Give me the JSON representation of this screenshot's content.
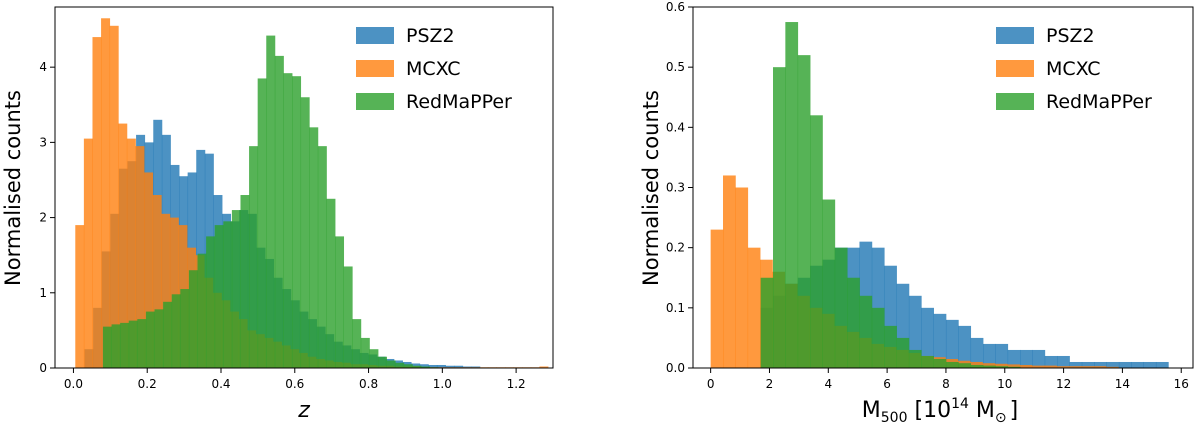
{
  "chart_data": [
    {
      "type": "histogram",
      "panel": "left",
      "xlabel": "z",
      "ylabel": "Normalised counts",
      "xlim": [
        -0.05,
        1.3
      ],
      "ylim": [
        0,
        4.8
      ],
      "xticks": [
        0.0,
        0.2,
        0.4,
        0.6,
        0.8,
        1.0,
        1.2
      ],
      "xtick_labels": [
        "0.0",
        "0.2",
        "0.4",
        "0.6",
        "0.8",
        "1.0",
        "1.2"
      ],
      "yticks": [
        0,
        1,
        2,
        3,
        4
      ],
      "ytick_labels": [
        "0",
        "1",
        "2",
        "3",
        "4"
      ],
      "legend_position": "top-right",
      "series": [
        {
          "name": "PSZ2",
          "color": "#1f77b4",
          "bin_start": 0.03,
          "bin_width": 0.0233,
          "values": [
            0.25,
            0.8,
            1.55,
            2.05,
            2.65,
            2.75,
            3.1,
            3.0,
            3.3,
            3.1,
            2.7,
            2.55,
            2.6,
            2.9,
            2.85,
            2.3,
            2.05,
            1.95,
            2.1,
            2.05,
            1.6,
            1.45,
            1.2,
            1.05,
            0.9,
            0.75,
            0.65,
            0.55,
            0.45,
            0.35,
            0.3,
            0.25,
            0.2,
            0.18,
            0.15,
            0.12,
            0.1,
            0.08,
            0.06,
            0.05,
            0.04,
            0.04,
            0.03,
            0.03,
            0.02,
            0.02
          ]
        },
        {
          "name": "MCXC",
          "color": "#ff7f0e",
          "bin_start": 0.005,
          "bin_width": 0.0233,
          "values": [
            1.9,
            3.05,
            4.4,
            4.65,
            4.55,
            3.25,
            3.05,
            2.95,
            2.6,
            2.3,
            2.05,
            2.0,
            1.9,
            1.6,
            1.5,
            1.2,
            1.0,
            0.9,
            0.75,
            0.65,
            0.5,
            0.45,
            0.4,
            0.35,
            0.3,
            0.25,
            0.2,
            0.15,
            0.12,
            0.1,
            0.08,
            0.07,
            0.05,
            0.05,
            0.04,
            0.03,
            0.03,
            0.02,
            0.02,
            0.02,
            0.01,
            0.01,
            0.01,
            0.01,
            0.01,
            0.01,
            0.01,
            0.01,
            0.01,
            0.01,
            0.01,
            0.01,
            0.01,
            0.01,
            0.02
          ]
        },
        {
          "name": "RedMaPPer",
          "color": "#2ca02c",
          "bin_start": 0.08,
          "bin_width": 0.0233,
          "values": [
            0.55,
            0.58,
            0.6,
            0.63,
            0.65,
            0.75,
            0.78,
            0.88,
            0.98,
            1.05,
            1.3,
            1.52,
            1.75,
            1.9,
            1.95,
            2.1,
            2.3,
            2.95,
            3.85,
            4.42,
            4.15,
            3.92,
            3.88,
            3.6,
            3.2,
            2.95,
            2.25,
            1.75,
            1.35,
            0.65,
            0.4,
            0.25,
            0.15,
            0.1,
            0.07,
            0.05,
            0.03,
            0.02,
            0.01
          ]
        }
      ]
    },
    {
      "type": "histogram",
      "panel": "right",
      "xlabel": "M500 [10^14 M⊙]",
      "xlabel_base": "M",
      "xlabel_sub": "500",
      "xlabel_mid": " [10",
      "xlabel_sup": "14",
      "xlabel_end": " M",
      "xlabel_sun": "⊙",
      "xlabel_close": "]",
      "ylabel": "Normalised counts",
      "xlim": [
        -0.6,
        16.4
      ],
      "ylim": [
        0,
        0.6
      ],
      "xticks": [
        0,
        2,
        4,
        6,
        8,
        10,
        12,
        14,
        16
      ],
      "xtick_labels": [
        "0",
        "2",
        "4",
        "6",
        "8",
        "10",
        "12",
        "14",
        "16"
      ],
      "yticks": [
        0.0,
        0.1,
        0.2,
        0.3,
        0.4,
        0.5,
        0.6
      ],
      "ytick_labels": [
        "0.0",
        "0.1",
        "0.2",
        "0.3",
        "0.4",
        "0.5",
        "0.6"
      ],
      "legend_position": "top-right",
      "series": [
        {
          "name": "PSZ2",
          "color": "#1f77b4",
          "bin_start": 1.7,
          "bin_width": 0.42,
          "values": [
            0.1,
            0.12,
            0.14,
            0.15,
            0.17,
            0.18,
            0.2,
            0.2,
            0.21,
            0.2,
            0.17,
            0.14,
            0.12,
            0.1,
            0.09,
            0.08,
            0.07,
            0.05,
            0.04,
            0.04,
            0.03,
            0.03,
            0.03,
            0.02,
            0.02,
            0.01,
            0.01,
            0.01,
            0.01,
            0.01,
            0.01,
            0.01,
            0.01
          ]
        },
        {
          "name": "MCXC",
          "color": "#ff7f0e",
          "bin_start": 0.0,
          "bin_width": 0.42,
          "values": [
            0.23,
            0.32,
            0.3,
            0.2,
            0.18,
            0.16,
            0.14,
            0.12,
            0.1,
            0.09,
            0.07,
            0.06,
            0.05,
            0.04,
            0.035,
            0.03,
            0.025,
            0.02,
            0.018,
            0.015,
            0.012,
            0.01,
            0.008,
            0.007,
            0.006,
            0.005,
            0.004,
            0.004,
            0.003,
            0.003,
            0.003,
            0.003,
            0.002
          ]
        },
        {
          "name": "RedMaPPer",
          "color": "#2ca02c",
          "bin_start": 1.7,
          "bin_width": 0.42,
          "values": [
            0.15,
            0.5,
            0.575,
            0.52,
            0.42,
            0.28,
            0.2,
            0.15,
            0.12,
            0.1,
            0.07,
            0.05,
            0.03,
            0.02,
            0.015,
            0.01,
            0.008,
            0.005,
            0.004,
            0.003,
            0.002
          ]
        }
      ]
    }
  ]
}
